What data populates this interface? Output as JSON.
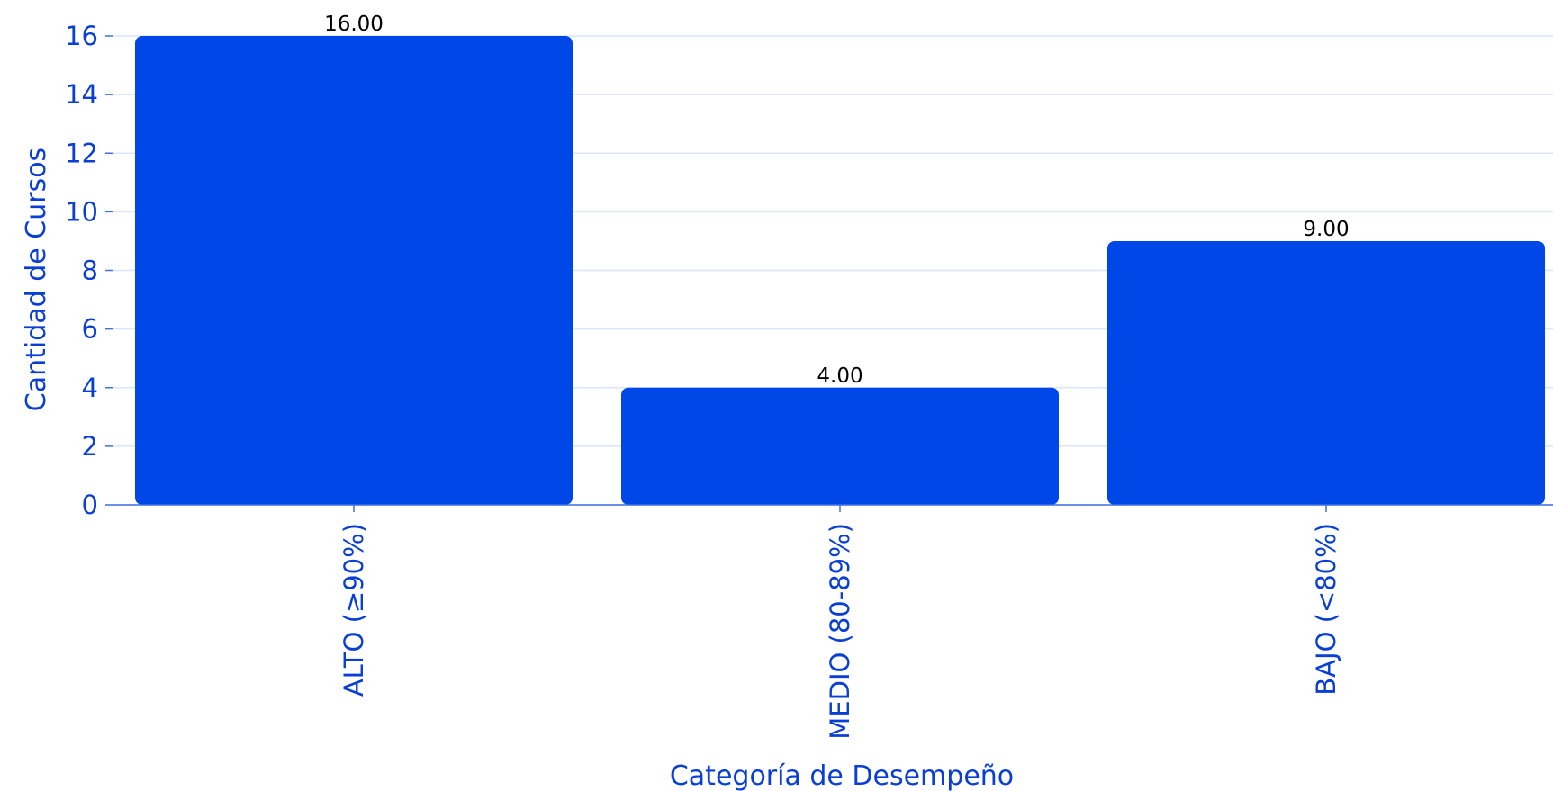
{
  "chart_data": {
    "type": "bar",
    "categories": [
      "ALTO (≥90%)",
      "MEDIO (80-89%)",
      "BAJO (<80%)"
    ],
    "values": [
      16,
      4,
      9
    ],
    "data_labels": [
      "16.00",
      "4.00",
      "9.00"
    ],
    "xlabel": "Categoría de Desempeño",
    "ylabel": "Cantidad de Cursos",
    "ylim": [
      0,
      16
    ],
    "yticks": [
      0,
      2,
      4,
      6,
      8,
      10,
      12,
      14,
      16
    ],
    "grid": true,
    "bar_color": "#0047e8",
    "text_color": "#0a3fd6"
  }
}
